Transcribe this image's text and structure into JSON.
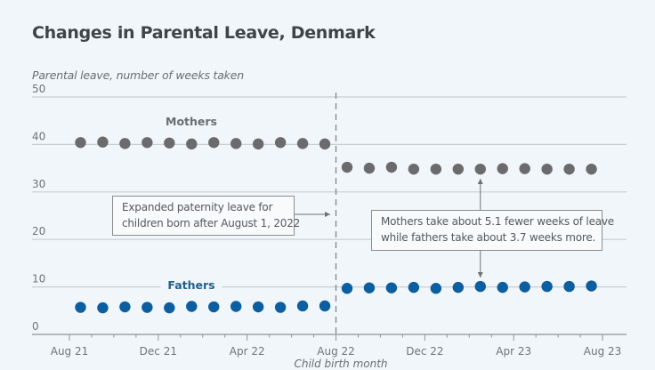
{
  "chart_data": {
    "type": "scatter",
    "title": "Changes in Parental Leave, Denmark",
    "ylabel": "Parental leave, number of weeks taken",
    "xlabel": "Child birth month",
    "ylim": [
      0,
      50
    ],
    "yticks": [
      0,
      10,
      20,
      30,
      40,
      50
    ],
    "xticks": [
      "Aug 21",
      "Dec 21",
      "Apr 22",
      "Aug 22",
      "Dec 22",
      "Apr 23",
      "Aug 23"
    ],
    "grid": true,
    "x": [
      "Aug 21",
      "Sep 21",
      "Oct 21",
      "Nov 21",
      "Dec 21",
      "Jan 22",
      "Feb 22",
      "Mar 22",
      "Apr 22",
      "May 22",
      "Jun 22",
      "Jul 22",
      "Aug 22",
      "Sep 22",
      "Oct 22",
      "Nov 22",
      "Dec 22",
      "Jan 23",
      "Feb 23",
      "Mar 23",
      "Apr 23",
      "May 23",
      "Jun 23",
      "Jul 23"
    ],
    "series": [
      {
        "name": "Mothers",
        "color": "#6b6b6e",
        "values": [
          40.4,
          40.5,
          40.2,
          40.4,
          40.3,
          40.1,
          40.4,
          40.2,
          40.1,
          40.4,
          40.2,
          40.1,
          35.2,
          35.0,
          35.2,
          34.8,
          34.8,
          34.8,
          34.8,
          34.9,
          34.9,
          34.8,
          34.8,
          34.8
        ]
      },
      {
        "name": "Fathers",
        "color": "#0b5ea0",
        "values": [
          5.7,
          5.6,
          5.8,
          5.7,
          5.6,
          5.9,
          5.8,
          5.9,
          5.8,
          5.7,
          6.0,
          6.0,
          9.7,
          9.8,
          9.8,
          9.9,
          9.7,
          9.9,
          10.1,
          9.9,
          10.0,
          10.1,
          10.1,
          10.2
        ]
      }
    ],
    "annotations": [
      {
        "text": "Expanded paternity leave for children born after August 1, 2022",
        "points_to": "Aug 22"
      },
      {
        "text": "Mothers take about 5.1 fewer weeks of leave while fathers take about 3.7 weeks more.",
        "points_to": "Feb 23"
      }
    ],
    "reference_line": {
      "x": "Aug 22",
      "style": "dashed"
    }
  },
  "header": {
    "title": "Changes in Parental Leave, Denmark",
    "ylabel": "Parental leave, number of weeks taken"
  },
  "labels": {
    "mothers": "Mothers",
    "fathers": "Fathers",
    "xtitle": "Child birth month"
  },
  "annotations": {
    "left_line1": "Expanded paternity leave for",
    "left_line2": "children born after August 1, 2022",
    "right_line1": "Mothers take about 5.1 fewer weeks of leave",
    "right_line2": "while fathers take about 3.7 weeks more."
  },
  "colors": {
    "mothers": "#6b6b6e",
    "fathers": "#0b5ea0",
    "fathers_label": "#1f5f8e",
    "mothers_label": "#6a6e72",
    "grid": "#c9ced3"
  }
}
